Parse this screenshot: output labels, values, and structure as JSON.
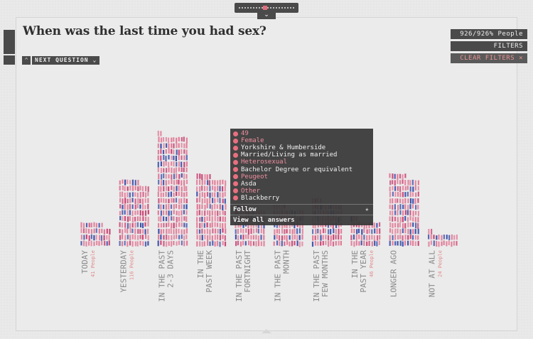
{
  "question": "When was the last time you had sex?",
  "next_question_label": "NEXT QUESTION",
  "people_count": "926/926% People",
  "filters_label": "FILTERS",
  "clear_filters_label": "CLEAR FILTERS",
  "chart_data": {
    "type": "bar",
    "categories": [
      "TODAY",
      "YESTERDAY",
      "IN THE PAST 2-3 DAYS",
      "IN THE PAST WEEK",
      "IN THE PAST FORTNIGHT",
      "IN THE PAST MONTH",
      "IN THE PAST FEW MONTHS",
      "IN THE PAST YEAR",
      "LONGER AGO",
      "NOT AT ALL"
    ],
    "label_lines": [
      [
        "TODAY"
      ],
      [
        "YESTERDAY"
      ],
      [
        "IN THE PAST",
        "2-3 DAYS"
      ],
      [
        "IN THE",
        "PAST WEEK"
      ],
      [
        "IN THE PAST",
        "FORTNIGHT"
      ],
      [
        "IN THE PAST",
        "MONTH"
      ],
      [
        "IN THE PAST",
        "FEW MONTHS"
      ],
      [
        "IN THE",
        "PAST YEAR"
      ],
      [
        "LONGER AGO"
      ],
      [
        "NOT AT ALL"
      ]
    ],
    "sublabels": [
      "41 People",
      "116 People",
      "",
      "",
      "",
      "",
      "",
      "46 People",
      "",
      "24 People"
    ],
    "values": [
      41,
      116,
      198,
      125,
      70,
      70,
      80,
      46,
      126,
      24
    ],
    "colors": {
      "pink": "#e07a96",
      "blue": "#3a4fa8",
      "red": "#c84070"
    }
  },
  "tooltip": {
    "items": [
      {
        "icon": "age-icon",
        "text": "49",
        "pink": true
      },
      {
        "icon": "gender-icon",
        "text": "Female",
        "pink": true
      },
      {
        "icon": "location-icon",
        "text": "Yorkshire & Humberside",
        "pink": false
      },
      {
        "icon": "relationship-icon",
        "text": "Married/Living as married",
        "pink": false
      },
      {
        "icon": "orientation-icon",
        "text": "Heterosexual",
        "pink": true
      },
      {
        "icon": "education-icon",
        "text": "Bachelor Degree or equivalent",
        "pink": false
      },
      {
        "icon": "car-icon",
        "text": "Peugeot",
        "pink": true
      },
      {
        "icon": "supermarket-icon",
        "text": "Asda",
        "pink": false
      },
      {
        "icon": "religion-icon",
        "text": "Other",
        "pink": true
      },
      {
        "icon": "phone-icon",
        "text": "Blackberry",
        "pink": false
      }
    ],
    "follow_label": "Follow",
    "view_all_label": "View all answers"
  }
}
